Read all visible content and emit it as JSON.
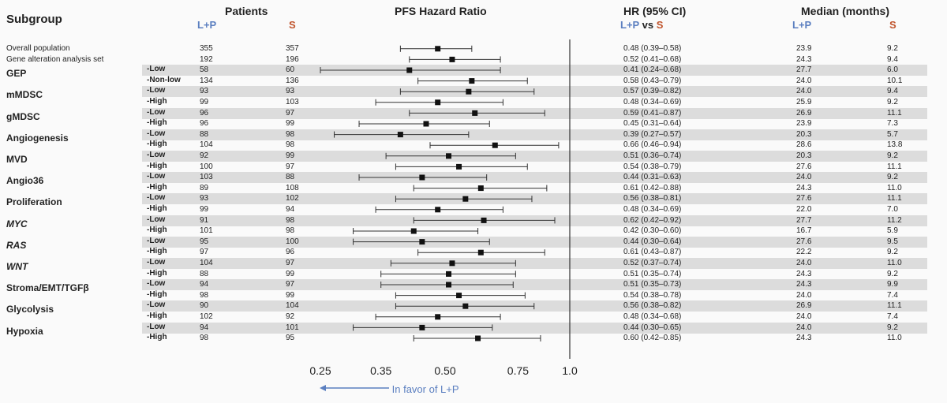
{
  "headers": {
    "subgroup": "Subgroup",
    "patients": "Patients",
    "lp": "L+P",
    "s": "S",
    "pfs": "PFS Hazard Ratio",
    "hrci": "HR (95% CI)",
    "lp_vs_s_a": "L+P",
    "lp_vs_s_b": "vs",
    "lp_vs_s_c": "S",
    "median": "Median (months)",
    "median_lp": "L+P",
    "median_s": "S"
  },
  "favor_label": "In favor of L+P",
  "colors": {
    "lp": "#5b7fc0",
    "s": "#c0542c",
    "stripe": "#dcdcdc"
  },
  "chart_data": {
    "type": "forest",
    "x_scale": "log",
    "xlim": [
      0.25,
      1.0
    ],
    "x_ticks": [
      {
        "value": 0.25,
        "label": "0.25"
      },
      {
        "value": 0.35,
        "label": "0.35"
      },
      {
        "value": 0.5,
        "label": "0.50"
      },
      {
        "value": 0.75,
        "label": "0.75"
      },
      {
        "value": 1.0,
        "label": "1.0"
      }
    ],
    "reference_line": 1.0,
    "rows": [
      {
        "group": "Overall population",
        "level": "",
        "n_lp": "355",
        "n_s": "357",
        "hr": 0.48,
        "lo": 0.39,
        "hi": 0.58,
        "ci_text": "0.48 (0.39–0.58)",
        "med_lp": "23.9",
        "med_s": "9.2",
        "stripe": false
      },
      {
        "group": "Gene alteration analysis set",
        "level": "",
        "n_lp": "192",
        "n_s": "196",
        "hr": 0.52,
        "lo": 0.41,
        "hi": 0.68,
        "ci_text": "0.52 (0.41–0.68)",
        "med_lp": "24.3",
        "med_s": "9.4",
        "stripe": false
      },
      {
        "group": "GEP",
        "level": "-Low",
        "n_lp": "58",
        "n_s": "60",
        "hr": 0.41,
        "lo": 0.24,
        "hi": 0.68,
        "ci_text": "0.41 (0.24–0.68)",
        "med_lp": "27.7",
        "med_s": "6.0",
        "stripe": true
      },
      {
        "group": "",
        "level": "-Non-low",
        "n_lp": "134",
        "n_s": "136",
        "hr": 0.58,
        "lo": 0.43,
        "hi": 0.79,
        "ci_text": "0.58 (0.43–0.79)",
        "med_lp": "24.0",
        "med_s": "10.1",
        "stripe": false
      },
      {
        "group": "mMDSC",
        "level": "-Low",
        "n_lp": "93",
        "n_s": "93",
        "hr": 0.57,
        "lo": 0.39,
        "hi": 0.82,
        "ci_text": "0.57 (0.39–0.82)",
        "med_lp": "24.0",
        "med_s": "9.4",
        "stripe": true
      },
      {
        "group": "",
        "level": "-High",
        "n_lp": "99",
        "n_s": "103",
        "hr": 0.48,
        "lo": 0.34,
        "hi": 0.69,
        "ci_text": "0.48 (0.34–0.69)",
        "med_lp": "25.9",
        "med_s": "9.2",
        "stripe": false
      },
      {
        "group": "gMDSC",
        "level": "-Low",
        "n_lp": "96",
        "n_s": "97",
        "hr": 0.59,
        "lo": 0.41,
        "hi": 0.87,
        "ci_text": "0.59 (0.41–0.87)",
        "med_lp": "26.9",
        "med_s": "11.1",
        "stripe": true
      },
      {
        "group": "",
        "level": "-High",
        "n_lp": "96",
        "n_s": "99",
        "hr": 0.45,
        "lo": 0.31,
        "hi": 0.64,
        "ci_text": "0.45 (0.31–0.64)",
        "med_lp": "23.9",
        "med_s": "7.3",
        "stripe": false
      },
      {
        "group": "Angiogenesis",
        "level": "-Low",
        "n_lp": "88",
        "n_s": "98",
        "hr": 0.39,
        "lo": 0.27,
        "hi": 0.57,
        "ci_text": "0.39 (0.27–0.57)",
        "med_lp": "20.3",
        "med_s": "5.7",
        "stripe": true
      },
      {
        "group": "",
        "level": "-High",
        "n_lp": "104",
        "n_s": "98",
        "hr": 0.66,
        "lo": 0.46,
        "hi": 0.94,
        "ci_text": "0.66 (0.46–0.94)",
        "med_lp": "28.6",
        "med_s": "13.8",
        "stripe": false
      },
      {
        "group": "MVD",
        "level": "-Low",
        "n_lp": "92",
        "n_s": "99",
        "hr": 0.51,
        "lo": 0.36,
        "hi": 0.74,
        "ci_text": "0.51 (0.36–0.74)",
        "med_lp": "20.3",
        "med_s": "9.2",
        "stripe": true
      },
      {
        "group": "",
        "level": "-High",
        "n_lp": "100",
        "n_s": "97",
        "hr": 0.54,
        "lo": 0.38,
        "hi": 0.79,
        "ci_text": "0.54 (0.38–0.79)",
        "med_lp": "27.6",
        "med_s": "11.1",
        "stripe": false
      },
      {
        "group": "Angio36",
        "level": "-Low",
        "n_lp": "103",
        "n_s": "88",
        "hr": 0.44,
        "lo": 0.31,
        "hi": 0.63,
        "ci_text": "0.44 (0.31–0.63)",
        "med_lp": "24.0",
        "med_s": "9.2",
        "stripe": true
      },
      {
        "group": "",
        "level": "-High",
        "n_lp": "89",
        "n_s": "108",
        "hr": 0.61,
        "lo": 0.42,
        "hi": 0.88,
        "ci_text": "0.61 (0.42–0.88)",
        "med_lp": "24.3",
        "med_s": "11.0",
        "stripe": false
      },
      {
        "group": "Proliferation",
        "level": "-Low",
        "n_lp": "93",
        "n_s": "102",
        "hr": 0.56,
        "lo": 0.38,
        "hi": 0.81,
        "ci_text": "0.56 (0.38–0.81)",
        "med_lp": "27.6",
        "med_s": "11.1",
        "stripe": true
      },
      {
        "group": "",
        "level": "-High",
        "n_lp": "99",
        "n_s": "94",
        "hr": 0.48,
        "lo": 0.34,
        "hi": 0.69,
        "ci_text": "0.48 (0.34–0.69)",
        "med_lp": "22.0",
        "med_s": "7.0",
        "stripe": false
      },
      {
        "group": "MYC",
        "italic": true,
        "level": "-Low",
        "n_lp": "91",
        "n_s": "98",
        "hr": 0.62,
        "lo": 0.42,
        "hi": 0.92,
        "ci_text": "0.62 (0.42–0.92)",
        "med_lp": "27.7",
        "med_s": "11.2",
        "stripe": true
      },
      {
        "group": "",
        "level": "-High",
        "n_lp": "101",
        "n_s": "98",
        "hr": 0.42,
        "lo": 0.3,
        "hi": 0.6,
        "ci_text": "0.42 (0.30–0.60)",
        "med_lp": "16.7",
        "med_s": "5.9",
        "stripe": false
      },
      {
        "group": "RAS",
        "italic": true,
        "level": "-Low",
        "n_lp": "95",
        "n_s": "100",
        "hr": 0.44,
        "lo": 0.3,
        "hi": 0.64,
        "ci_text": "0.44 (0.30–0.64)",
        "med_lp": "27.6",
        "med_s": "9.5",
        "stripe": true
      },
      {
        "group": "",
        "level": "-High",
        "n_lp": "97",
        "n_s": "96",
        "hr": 0.61,
        "lo": 0.43,
        "hi": 0.87,
        "ci_text": "0.61 (0.43–0.87)",
        "med_lp": "22.2",
        "med_s": "9.2",
        "stripe": false
      },
      {
        "group": "WNT",
        "italic": true,
        "level": "-Low",
        "n_lp": "104",
        "n_s": "97",
        "hr": 0.52,
        "lo": 0.37,
        "hi": 0.74,
        "ci_text": "0.52 (0.37–0.74)",
        "med_lp": "24.0",
        "med_s": "11.0",
        "stripe": true
      },
      {
        "group": "",
        "level": "-High",
        "n_lp": "88",
        "n_s": "99",
        "hr": 0.51,
        "lo": 0.35,
        "hi": 0.74,
        "ci_text": "0.51 (0.35–0.74)",
        "med_lp": "24.3",
        "med_s": "9.2",
        "stripe": false
      },
      {
        "group": "Stroma/EMT/TGFβ",
        "level": "-Low",
        "n_lp": "94",
        "n_s": "97",
        "hr": 0.51,
        "lo": 0.35,
        "hi": 0.73,
        "ci_text": "0.51 (0.35–0.73)",
        "med_lp": "24.3",
        "med_s": "9.9",
        "stripe": true
      },
      {
        "group": "",
        "level": "-High",
        "n_lp": "98",
        "n_s": "99",
        "hr": 0.54,
        "lo": 0.38,
        "hi": 0.78,
        "ci_text": "0.54 (0.38–0.78)",
        "med_lp": "24.0",
        "med_s": "7.4",
        "stripe": false
      },
      {
        "group": "Glycolysis",
        "level": "-Low",
        "n_lp": "90",
        "n_s": "104",
        "hr": 0.56,
        "lo": 0.38,
        "hi": 0.82,
        "ci_text": "0.56 (0.38–0.82)",
        "med_lp": "26.9",
        "med_s": "11.1",
        "stripe": true
      },
      {
        "group": "",
        "level": "-High",
        "n_lp": "102",
        "n_s": "92",
        "hr": 0.48,
        "lo": 0.34,
        "hi": 0.68,
        "ci_text": "0.48 (0.34–0.68)",
        "med_lp": "24.0",
        "med_s": "7.4",
        "stripe": false
      },
      {
        "group": "Hypoxia",
        "level": "-Low",
        "n_lp": "94",
        "n_s": "101",
        "hr": 0.44,
        "lo": 0.3,
        "hi": 0.65,
        "ci_text": "0.44 (0.30–0.65)",
        "med_lp": "24.0",
        "med_s": "9.2",
        "stripe": true
      },
      {
        "group": "",
        "level": "-High",
        "n_lp": "98",
        "n_s": "95",
        "hr": 0.6,
        "lo": 0.42,
        "hi": 0.85,
        "ci_text": "0.60 (0.42–0.85)",
        "med_lp": "24.3",
        "med_s": "11.0",
        "stripe": false
      }
    ]
  }
}
